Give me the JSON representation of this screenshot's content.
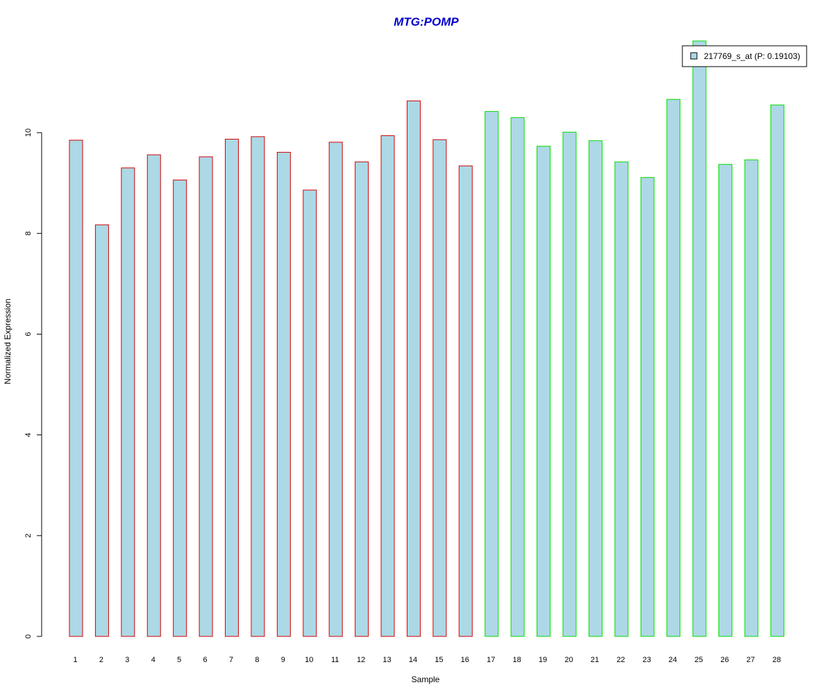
{
  "chart_data": {
    "type": "bar",
    "title": "MTG:POMP",
    "xlabel": "Sample",
    "ylabel": "Normalized Expression",
    "categories": [
      "1",
      "2",
      "3",
      "4",
      "5",
      "6",
      "7",
      "8",
      "9",
      "10",
      "11",
      "12",
      "13",
      "14",
      "15",
      "16",
      "17",
      "18",
      "19",
      "20",
      "21",
      "22",
      "23",
      "24",
      "25",
      "26",
      "27",
      "28"
    ],
    "series": [
      {
        "name": "217769_s_at (P: 0.19103)",
        "values": [
          9.85,
          8.17,
          9.3,
          9.56,
          9.06,
          9.52,
          9.87,
          9.92,
          9.61,
          8.86,
          9.81,
          9.42,
          9.94,
          10.63,
          9.86,
          9.34,
          10.42,
          10.3,
          9.73,
          10.01,
          9.84,
          9.42,
          9.11,
          10.66,
          11.82,
          9.37,
          9.46,
          10.55
        ]
      }
    ],
    "group_border_colors": [
      "#d40000",
      "#d40000",
      "#d40000",
      "#d40000",
      "#d40000",
      "#d40000",
      "#d40000",
      "#d40000",
      "#d40000",
      "#d40000",
      "#d40000",
      "#d40000",
      "#d40000",
      "#d40000",
      "#d40000",
      "#d40000",
      "#00dd00",
      "#00dd00",
      "#00dd00",
      "#00dd00",
      "#00dd00",
      "#00dd00",
      "#00dd00",
      "#00dd00",
      "#00dd00",
      "#00dd00",
      "#00dd00",
      "#00dd00"
    ],
    "bar_fill": "#add8e6",
    "title_color": "#0000cc",
    "yticks": [
      0,
      2,
      4,
      6,
      8,
      10
    ],
    "ylim": [
      0,
      11.82
    ],
    "legend_position": "top-right",
    "grid": false
  }
}
